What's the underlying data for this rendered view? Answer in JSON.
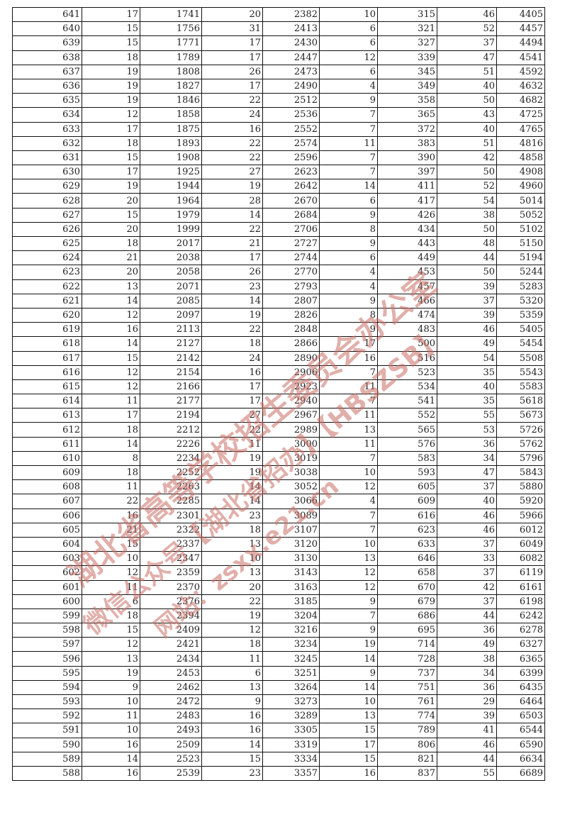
{
  "table": {
    "rows": [
      [
        641,
        17,
        1741,
        20,
        2382,
        10,
        315,
        46,
        4405
      ],
      [
        640,
        15,
        1756,
        31,
        2413,
        6,
        321,
        52,
        4457
      ],
      [
        639,
        15,
        1771,
        17,
        2430,
        6,
        327,
        37,
        4494
      ],
      [
        638,
        18,
        1789,
        17,
        2447,
        12,
        339,
        47,
        4541
      ],
      [
        637,
        19,
        1808,
        26,
        2473,
        6,
        345,
        51,
        4592
      ],
      [
        636,
        19,
        1827,
        17,
        2490,
        4,
        349,
        40,
        4632
      ],
      [
        635,
        19,
        1846,
        22,
        2512,
        9,
        358,
        50,
        4682
      ],
      [
        634,
        12,
        1858,
        24,
        2536,
        7,
        365,
        43,
        4725
      ],
      [
        633,
        17,
        1875,
        16,
        2552,
        7,
        372,
        40,
        4765
      ],
      [
        632,
        18,
        1893,
        22,
        2574,
        11,
        383,
        51,
        4816
      ],
      [
        631,
        15,
        1908,
        22,
        2596,
        7,
        390,
        42,
        4858
      ],
      [
        630,
        17,
        1925,
        27,
        2623,
        7,
        397,
        50,
        4908
      ],
      [
        629,
        19,
        1944,
        19,
        2642,
        14,
        411,
        52,
        4960
      ],
      [
        628,
        20,
        1964,
        28,
        2670,
        6,
        417,
        54,
        5014
      ],
      [
        627,
        15,
        1979,
        14,
        2684,
        9,
        426,
        38,
        5052
      ],
      [
        626,
        20,
        1999,
        22,
        2706,
        8,
        434,
        50,
        5102
      ],
      [
        625,
        18,
        2017,
        21,
        2727,
        9,
        443,
        48,
        5150
      ],
      [
        624,
        21,
        2038,
        17,
        2744,
        6,
        449,
        44,
        5194
      ],
      [
        623,
        20,
        2058,
        26,
        2770,
        4,
        453,
        50,
        5244
      ],
      [
        622,
        13,
        2071,
        23,
        2793,
        4,
        457,
        39,
        5283
      ],
      [
        621,
        14,
        2085,
        14,
        2807,
        9,
        466,
        37,
        5320
      ],
      [
        620,
        12,
        2097,
        19,
        2826,
        8,
        474,
        39,
        5359
      ],
      [
        619,
        16,
        2113,
        22,
        2848,
        9,
        483,
        46,
        5405
      ],
      [
        618,
        14,
        2127,
        18,
        2866,
        17,
        500,
        49,
        5454
      ],
      [
        617,
        15,
        2142,
        24,
        2890,
        16,
        516,
        54,
        5508
      ],
      [
        616,
        12,
        2154,
        16,
        2906,
        7,
        523,
        35,
        5543
      ],
      [
        615,
        12,
        2166,
        17,
        2923,
        11,
        534,
        40,
        5583
      ],
      [
        614,
        11,
        2177,
        17,
        2940,
        7,
        541,
        35,
        5618
      ],
      [
        613,
        17,
        2194,
        27,
        2967,
        11,
        552,
        55,
        5673
      ],
      [
        612,
        18,
        2212,
        22,
        2989,
        13,
        565,
        53,
        5726
      ],
      [
        611,
        14,
        2226,
        11,
        3000,
        11,
        576,
        36,
        5762
      ],
      [
        610,
        8,
        2234,
        19,
        3019,
        7,
        583,
        34,
        5796
      ],
      [
        609,
        18,
        2252,
        19,
        3038,
        10,
        593,
        47,
        5843
      ],
      [
        608,
        11,
        2263,
        14,
        3052,
        12,
        605,
        37,
        5880
      ],
      [
        607,
        22,
        2285,
        14,
        3066,
        4,
        609,
        40,
        5920
      ],
      [
        606,
        16,
        2301,
        23,
        3089,
        7,
        616,
        46,
        5966
      ],
      [
        605,
        21,
        2322,
        18,
        3107,
        7,
        623,
        46,
        6012
      ],
      [
        604,
        15,
        2337,
        13,
        3120,
        10,
        633,
        37,
        6049
      ],
      [
        603,
        10,
        2347,
        10,
        3130,
        13,
        646,
        33,
        6082
      ],
      [
        602,
        12,
        2359,
        13,
        3143,
        12,
        658,
        37,
        6119
      ],
      [
        601,
        11,
        2370,
        20,
        3163,
        12,
        670,
        42,
        6161
      ],
      [
        600,
        6,
        2376,
        22,
        3185,
        9,
        679,
        37,
        6198
      ],
      [
        599,
        18,
        2394,
        19,
        3204,
        7,
        686,
        44,
        6242
      ],
      [
        598,
        15,
        2409,
        12,
        3216,
        9,
        695,
        36,
        6278
      ],
      [
        597,
        12,
        2421,
        18,
        3234,
        19,
        714,
        49,
        6327
      ],
      [
        596,
        13,
        2434,
        11,
        3245,
        14,
        728,
        38,
        6365
      ],
      [
        595,
        19,
        2453,
        6,
        3251,
        9,
        737,
        34,
        6399
      ],
      [
        594,
        9,
        2462,
        13,
        3264,
        14,
        751,
        36,
        6435
      ],
      [
        593,
        10,
        2472,
        9,
        3273,
        10,
        761,
        29,
        6464
      ],
      [
        592,
        11,
        2483,
        16,
        3289,
        13,
        774,
        39,
        6503
      ],
      [
        591,
        10,
        2493,
        16,
        3305,
        15,
        789,
        41,
        6544
      ],
      [
        590,
        16,
        2509,
        14,
        3319,
        17,
        806,
        46,
        6590
      ],
      [
        589,
        14,
        2523,
        15,
        3334,
        15,
        821,
        44,
        6634
      ],
      [
        588,
        16,
        2539,
        23,
        3357,
        16,
        837,
        55,
        6689
      ]
    ]
  },
  "watermark": {
    "line1": "湖北省高等学校招生委员会办公室",
    "line2": "微信公众号【湖北省招办】【HBSZSB】",
    "line3": "网站：zsxx.e21.cn",
    "color": "#c86e64"
  }
}
